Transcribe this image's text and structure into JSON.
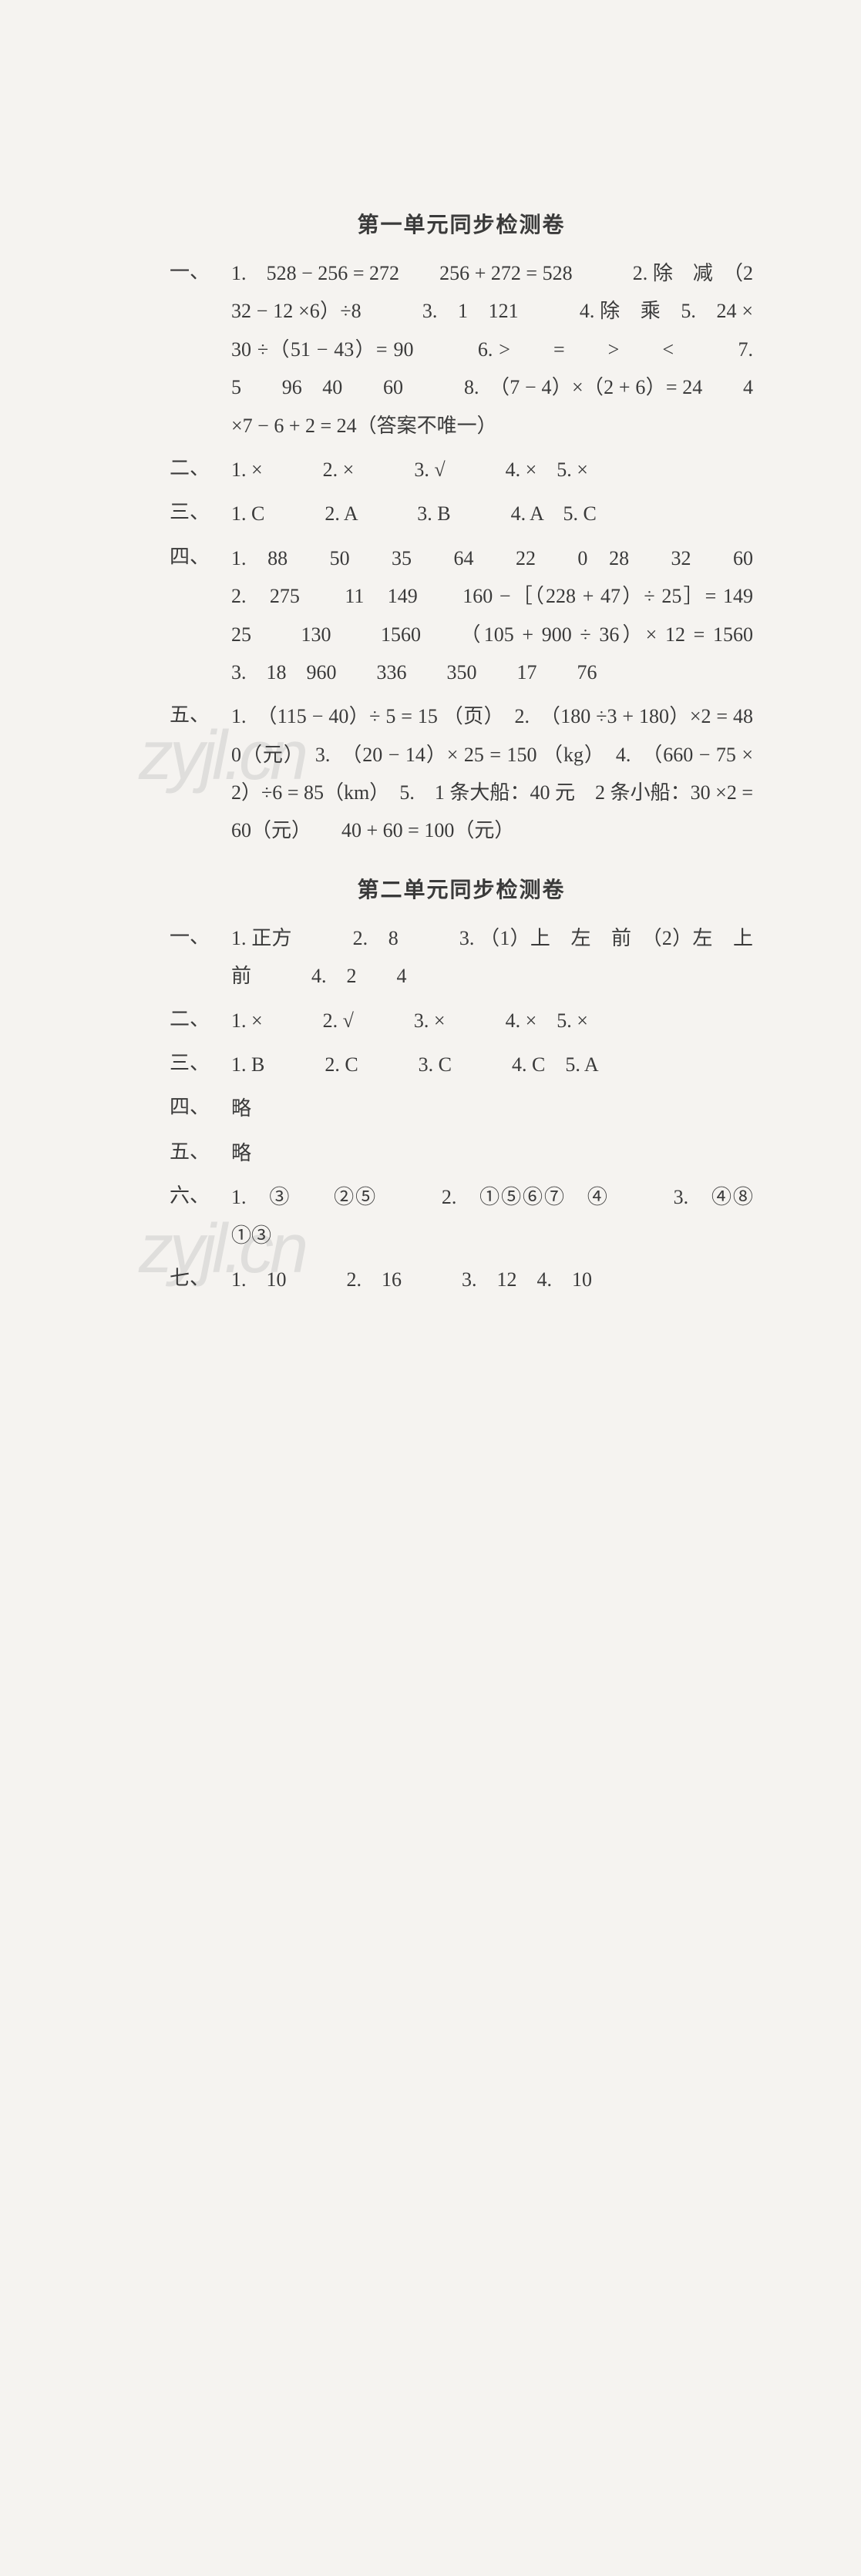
{
  "unit1": {
    "title": "第一单元同步检测卷",
    "q1": {
      "marker": "一、",
      "content": "1.　528 − 256 = 272　　256 + 272 = 528　　　2. 除　减　（232 − 12 ×6）÷8　　　3.　1　121　　　4. 除　乘　5.　24 ×30 ÷（51 − 43）= 90　　　6. >　　=　　>　　<　　　7.　5　　96　40　　60　　　8.　（7 − 4）×（2 + 6）= 24　　4 ×7 − 6 + 2 = 24（答案不唯一）"
    },
    "q2": {
      "marker": "二、",
      "content": "1. ×　　　2. ×　　　3. √　　　4. ×　5. ×"
    },
    "q3": {
      "marker": "三、",
      "content": "1. C　　　2. A　　　3. B　　　4. A　5. C"
    },
    "q4": {
      "marker": "四、",
      "content": "1.　88　　50　　35　　64　　22　　0　28　　32　　60　　　2.　275　　11　149　　160 −［（228 + 47）÷ 25］= 149　　25　　130　　1560　　（105 + 900 ÷ 36）× 12 = 1560　　　3.　18　960　　336　　350　　17　　76"
    },
    "q5": {
      "marker": "五、",
      "content": "1.　（115 − 40）÷ 5 = 15 （页）　2.　（180 ÷3 + 180）×2 = 480（元）　3.　（20 − 14）× 25 = 150 （kg）　4.　（660 − 75 ×2）÷6 = 85（km）　5.　1 条大船：40 元　2 条小船：30 ×2 = 60（元）　　40 + 60 = 100（元）"
    }
  },
  "unit2": {
    "title": "第二单元同步检测卷",
    "q1": {
      "marker": "一、",
      "content": "1. 正方　　　2.　8　　　3. （1）上　左　前　（2）左　上　前　　　4.　2　　4"
    },
    "q2": {
      "marker": "二、",
      "content": "1. ×　　　2. √　　　3. ×　　　4. ×　5. ×"
    },
    "q3": {
      "marker": "三、",
      "content": "1. B　　　2. C　　　3. C　　　4. C　5. A"
    },
    "q4": {
      "marker": "四、",
      "content": "略"
    },
    "q5": {
      "marker": "五、",
      "content": "略"
    },
    "q6": {
      "marker": "六、",
      "circles": {
        "c1": "①",
        "c2": "②",
        "c3": "③",
        "c4": "④",
        "c5": "⑤",
        "c6": "⑥",
        "c7": "⑦",
        "c8": "⑧"
      },
      "p1": "1.　",
      "p2": "　　",
      "p3": "　　　2.　",
      "p4": "　",
      "p5": "　　　3.　",
      "p6": "　　"
    },
    "q7": {
      "marker": "七、",
      "content": "1.　10　　　2.　16　　　3.　12　4.　10"
    }
  },
  "watermarks": {
    "text": "zyjl.cn"
  },
  "colors": {
    "background": "#f5f3f0",
    "text": "#3a3a3a",
    "watermark": "rgba(160,160,160,0.25)"
  }
}
